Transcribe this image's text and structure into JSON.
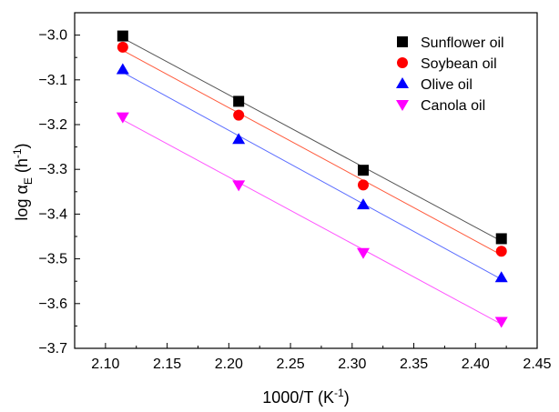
{
  "chart_data": {
    "type": "scatter",
    "title": "",
    "xlabel": {
      "main": "1000/T (K",
      "sup": "-1",
      "end": ")"
    },
    "ylabel": {
      "main": "log α",
      "sub": "E",
      "mid": " (h",
      "sup": "-1",
      "end": ")"
    },
    "xlim": [
      2.075,
      2.45
    ],
    "ylim": [
      -3.7,
      -2.95
    ],
    "xticks": [
      2.1,
      2.15,
      2.2,
      2.25,
      2.3,
      2.35,
      2.4,
      2.45
    ],
    "xtick_labels": [
      "2.10",
      "2.15",
      "2.20",
      "2.25",
      "2.30",
      "2.35",
      "2.40",
      "2.45"
    ],
    "yticks": [
      -3.7,
      -3.6,
      -3.5,
      -3.4,
      -3.3,
      -3.2,
      -3.1,
      -3.0
    ],
    "ytick_labels": [
      "−3.7",
      "−3.6",
      "−3.5",
      "−3.4",
      "−3.3",
      "−3.2",
      "−3.1",
      "−3.0"
    ],
    "grid": false,
    "legend_position": "top-right",
    "fit_lines": true,
    "series": [
      {
        "name": "Sunflower oil",
        "marker": "square",
        "color": "#000000",
        "line_color": "#555555",
        "x": [
          2.114,
          2.208,
          2.309,
          2.421
        ],
        "y": [
          -3.002,
          -3.148,
          -3.302,
          -3.455
        ]
      },
      {
        "name": "Soybean oil",
        "marker": "circle",
        "color": "#ff0000",
        "line_color": "#ff5a3c",
        "x": [
          2.114,
          2.208,
          2.309,
          2.421
        ],
        "y": [
          -3.027,
          -3.179,
          -3.335,
          -3.483
        ]
      },
      {
        "name": "Olive oil",
        "marker": "triangle-up",
        "color": "#0000ff",
        "line_color": "#5a6cff",
        "x": [
          2.114,
          2.208,
          2.309,
          2.421
        ],
        "y": [
          -3.077,
          -3.233,
          -3.379,
          -3.542
        ]
      },
      {
        "name": "Canola oil",
        "marker": "triangle-down",
        "color": "#ff00ff",
        "line_color": "#ff55ff",
        "x": [
          2.114,
          2.208,
          2.309,
          2.421
        ],
        "y": [
          -3.183,
          -3.335,
          -3.486,
          -3.64
        ]
      }
    ]
  }
}
